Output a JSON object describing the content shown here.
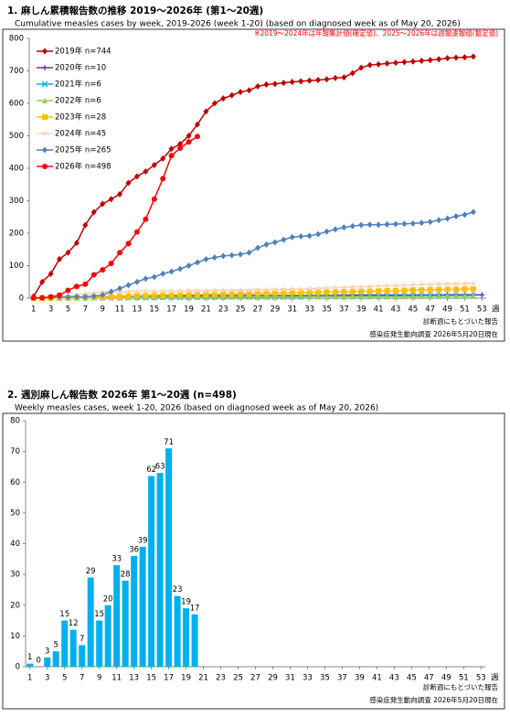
{
  "chart_data": [
    {
      "type": "line",
      "title": "1. 麻しん累積報告数の推移  2019～2026年 (第1～20週)",
      "subtitle": "Cumulative measles cases by week, 2019-2026 (week 1-20)  (based on diagnosed week as of May 20, 2026)",
      "note": "※2019～2024年は年報集計値(確定値)、2025～2026年は週報速報値(暫定値)",
      "footnotes": [
        "診断週にもとづいた報告",
        "感染症発生動向調査 2026年5月20日現在"
      ],
      "xlabel": "週",
      "x": [
        1,
        2,
        3,
        4,
        5,
        6,
        7,
        8,
        9,
        10,
        11,
        12,
        13,
        14,
        15,
        16,
        17,
        18,
        19,
        20,
        21,
        22,
        23,
        24,
        25,
        26,
        27,
        28,
        29,
        30,
        31,
        32,
        33,
        34,
        35,
        36,
        37,
        38,
        39,
        40,
        41,
        42,
        43,
        44,
        45,
        46,
        47,
        48,
        49,
        50,
        51,
        52,
        53
      ],
      "xlim": [
        0.5,
        53.5
      ],
      "xticks": [
        1,
        3,
        5,
        7,
        9,
        11,
        13,
        15,
        17,
        19,
        21,
        23,
        25,
        27,
        29,
        31,
        33,
        35,
        37,
        39,
        41,
        43,
        45,
        47,
        49,
        51,
        53
      ],
      "ylim": [
        0,
        800
      ],
      "yticks": [
        0,
        100,
        200,
        300,
        400,
        500,
        600,
        700,
        800
      ],
      "legend": "upper left",
      "series": [
        {
          "name": "2019年 n=744",
          "color": "#c00000",
          "marker": "diamond",
          "values": [
            5,
            50,
            75,
            120,
            140,
            170,
            225,
            265,
            290,
            305,
            320,
            355,
            375,
            390,
            410,
            430,
            460,
            475,
            500,
            535,
            575,
            600,
            615,
            625,
            635,
            640,
            652,
            658,
            660,
            663,
            666,
            668,
            670,
            672,
            674,
            678,
            680,
            693,
            710,
            718,
            720,
            723,
            725,
            727,
            729,
            731,
            733,
            736,
            739,
            741,
            742,
            744,
            null
          ]
        },
        {
          "name": "2020年 n=10",
          "color": "#7030a0",
          "marker": "plus",
          "values": [
            0,
            1,
            1,
            2,
            2,
            3,
            3,
            4,
            4,
            5,
            5,
            5,
            6,
            6,
            6,
            6,
            7,
            7,
            7,
            7,
            7,
            7,
            7,
            7,
            8,
            8,
            8,
            8,
            8,
            8,
            8,
            8,
            8,
            8,
            8,
            8,
            9,
            9,
            9,
            9,
            9,
            9,
            9,
            9,
            9,
            9,
            9,
            9,
            10,
            10,
            10,
            10,
            10
          ]
        },
        {
          "name": "2021年 n=6",
          "color": "#00b0f0",
          "marker": "x",
          "values": [
            0,
            0,
            1,
            1,
            1,
            1,
            2,
            2,
            2,
            2,
            2,
            2,
            3,
            3,
            3,
            3,
            3,
            3,
            3,
            3,
            4,
            4,
            4,
            4,
            4,
            4,
            4,
            4,
            4,
            4,
            5,
            5,
            5,
            5,
            5,
            5,
            5,
            5,
            5,
            5,
            5,
            5,
            5,
            5,
            6,
            6,
            6,
            6,
            6,
            6,
            6,
            6,
            null
          ]
        },
        {
          "name": "2022年 n=6",
          "color": "#92d050",
          "marker": "triangle",
          "values": [
            0,
            0,
            0,
            1,
            1,
            1,
            1,
            1,
            2,
            2,
            2,
            2,
            2,
            2,
            3,
            3,
            3,
            3,
            3,
            3,
            3,
            3,
            3,
            4,
            4,
            4,
            4,
            4,
            4,
            4,
            4,
            4,
            5,
            5,
            5,
            5,
            5,
            5,
            5,
            5,
            5,
            5,
            5,
            5,
            5,
            6,
            6,
            6,
            6,
            6,
            6,
            6,
            null
          ]
        },
        {
          "name": "2023年 n=28",
          "color": "#ffc000",
          "marker": "square",
          "values": [
            0,
            0,
            0,
            1,
            1,
            2,
            2,
            3,
            4,
            5,
            6,
            7,
            8,
            8,
            9,
            9,
            10,
            10,
            11,
            11,
            12,
            12,
            13,
            13,
            14,
            14,
            15,
            15,
            16,
            16,
            17,
            17,
            18,
            18,
            19,
            19,
            20,
            20,
            21,
            21,
            22,
            23,
            23,
            24,
            25,
            25,
            26,
            26,
            27,
            27,
            28,
            28,
            null
          ]
        },
        {
          "name": "2024年 n=45",
          "color": "#fcd5b4",
          "marker": "star",
          "values": [
            0,
            1,
            2,
            4,
            7,
            10,
            13,
            16,
            18,
            19,
            20,
            20,
            21,
            21,
            21,
            22,
            22,
            22,
            23,
            23,
            23,
            24,
            24,
            24,
            25,
            25,
            26,
            26,
            27,
            27,
            28,
            28,
            29,
            30,
            31,
            32,
            33,
            34,
            35,
            36,
            37,
            38,
            39,
            40,
            41,
            42,
            42,
            43,
            44,
            44,
            45,
            45,
            null
          ]
        },
        {
          "name": "2025年 n=265",
          "color": "#4f81bd",
          "marker": "diamond",
          "values": [
            0,
            1,
            2,
            3,
            3,
            4,
            4,
            6,
            10,
            20,
            30,
            40,
            50,
            60,
            65,
            75,
            82,
            90,
            100,
            110,
            120,
            125,
            130,
            132,
            135,
            140,
            155,
            165,
            172,
            180,
            188,
            190,
            192,
            197,
            205,
            212,
            218,
            222,
            225,
            226,
            226,
            227,
            228,
            229,
            230,
            232,
            235,
            240,
            245,
            252,
            257,
            265,
            null
          ]
        },
        {
          "name": "2026年 n=498",
          "color": "#ff0000",
          "marker": "circle",
          "values": [
            1,
            1,
            4,
            9,
            24,
            36,
            43,
            72,
            87,
            107,
            140,
            168,
            204,
            243,
            305,
            368,
            439,
            462,
            481,
            498,
            null,
            null,
            null,
            null,
            null,
            null,
            null,
            null,
            null,
            null,
            null,
            null,
            null,
            null,
            null,
            null,
            null,
            null,
            null,
            null,
            null,
            null,
            null,
            null,
            null,
            null,
            null,
            null,
            null,
            null,
            null,
            null,
            null
          ]
        }
      ]
    },
    {
      "type": "bar",
      "title": "2. 週別麻しん報告数  2026年 第1～20週 (n=498)",
      "subtitle": "Weekly measles cases, week 1-20, 2026 (based on diagnosed week as of May 20, 2026)",
      "footnotes": [
        "診断週にもとづいた報告",
        "感染症発生動向調査 2026年5月20日現在"
      ],
      "xlabel": "週",
      "x": [
        1,
        2,
        3,
        4,
        5,
        6,
        7,
        8,
        9,
        10,
        11,
        12,
        13,
        14,
        15,
        16,
        17,
        18,
        19,
        20
      ],
      "values": [
        1,
        0,
        3,
        5,
        15,
        12,
        7,
        29,
        15,
        20,
        33,
        28,
        36,
        39,
        62,
        63,
        71,
        23,
        19,
        17
      ],
      "color": "#00b0f0",
      "xlim": [
        0.5,
        53.5
      ],
      "xticks": [
        1,
        3,
        5,
        7,
        9,
        11,
        13,
        15,
        17,
        19,
        21,
        23,
        25,
        27,
        29,
        31,
        33,
        35,
        37,
        39,
        41,
        43,
        45,
        47,
        49,
        51,
        53
      ],
      "ylim": [
        0,
        80
      ],
      "yticks": [
        0,
        10,
        20,
        30,
        40,
        50,
        60,
        70,
        80
      ]
    }
  ]
}
